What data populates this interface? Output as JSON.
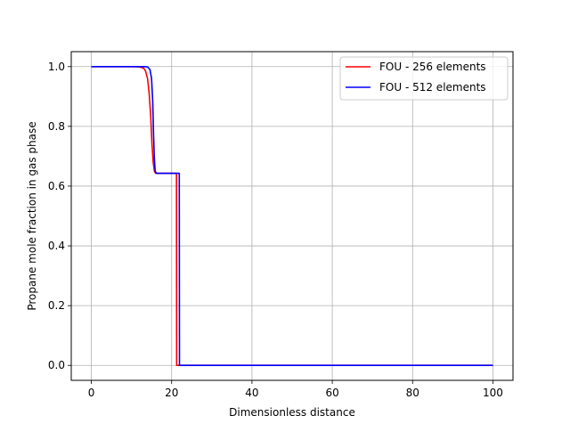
{
  "chart_data": {
    "type": "line",
    "title": "",
    "xlabel": "Dimensionless distance",
    "ylabel": "Propane mole fraction in gas phase",
    "xlim": [
      -5,
      105
    ],
    "ylim": [
      -0.05,
      1.05
    ],
    "xticks": [
      0,
      20,
      40,
      60,
      80,
      100
    ],
    "yticks": [
      0.0,
      0.2,
      0.4,
      0.6,
      0.8,
      1.0
    ],
    "xtick_labels": [
      "0",
      "20",
      "40",
      "60",
      "80",
      "100"
    ],
    "ytick_labels": [
      "0.0",
      "0.2",
      "0.4",
      "0.6",
      "0.8",
      "1.0"
    ],
    "grid": true,
    "legend_position": "top-right",
    "series": [
      {
        "name": "FOU - 256 elements",
        "color": "#ff0000",
        "x": [
          0,
          10,
          12,
          13,
          13.5,
          14,
          14.4,
          14.8,
          15.1,
          15.4,
          15.7,
          16,
          18,
          20,
          21.2,
          21.25,
          21.6,
          22,
          30,
          50,
          70,
          100
        ],
        "y": [
          1.0,
          1.0,
          0.999,
          0.995,
          0.985,
          0.96,
          0.91,
          0.83,
          0.74,
          0.68,
          0.65,
          0.643,
          0.643,
          0.643,
          0.643,
          0.0,
          0.0,
          0.0,
          0.0,
          0.0,
          0.0,
          0.0
        ]
      },
      {
        "name": "FOU - 512 elements",
        "color": "#0000ff",
        "x": [
          0,
          10,
          13,
          14,
          14.6,
          15.0,
          15.3,
          15.5,
          15.7,
          15.9,
          16.2,
          18,
          20,
          21.9,
          21.95,
          22.2,
          30,
          50,
          70,
          100
        ],
        "y": [
          1.0,
          1.0,
          1.0,
          0.999,
          0.99,
          0.96,
          0.88,
          0.77,
          0.69,
          0.65,
          0.643,
          0.643,
          0.643,
          0.643,
          0.0,
          0.0,
          0.0,
          0.0,
          0.0,
          0.0
        ]
      }
    ]
  }
}
